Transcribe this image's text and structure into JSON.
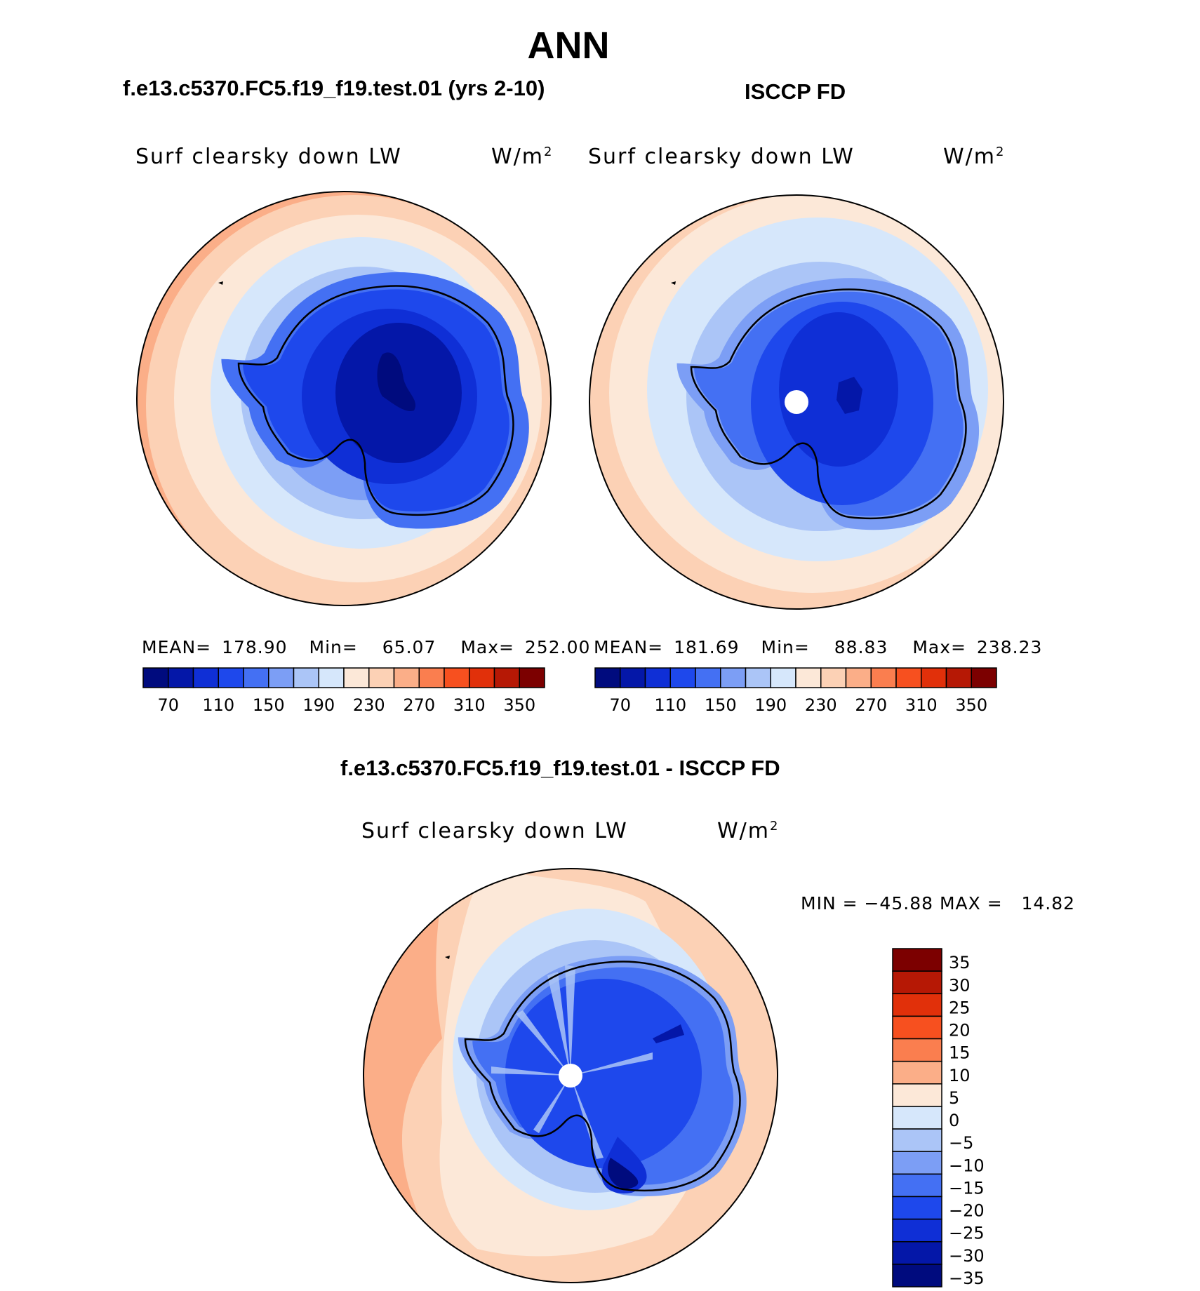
{
  "title": "ANN",
  "panels": [
    {
      "case_title": "f.e13.c5370.FC5.f19_f19.test.01 (yrs 2-10)",
      "variable": "Surf clearsky down LW",
      "units_base": "W/m",
      "units_exp": "2",
      "stats": {
        "mean_label": "MEAN=",
        "mean": "178.90",
        "min_label": "Min=",
        "min": "65.07",
        "max_label": "Max=",
        "max": "252.00"
      },
      "has_pole_hole": false
    },
    {
      "case_title": "ISCCP FD",
      "variable": "Surf clearsky down LW",
      "units_base": "W/m",
      "units_exp": "2",
      "stats": {
        "mean_label": "MEAN=",
        "mean": "181.69",
        "min_label": "Min=",
        "min": "88.83",
        "max_label": "Max=",
        "max": "238.23"
      },
      "has_pole_hole": true
    },
    {
      "case_title": "f.e13.c5370.FC5.f19_f19.test.01 - ISCCP FD",
      "variable": "Surf clearsky down LW",
      "units_base": "W/m",
      "units_exp": "2",
      "minmax_text": "MIN = −45.88 MAX =   14.82",
      "has_pole_hole": true
    }
  ],
  "abs_colorbar": {
    "colors": [
      "#000b7e",
      "#0417a8",
      "#0f2fd6",
      "#1e48ec",
      "#4470f3",
      "#7c9ef5",
      "#abc5f7",
      "#d6e7fb",
      "#fce8d8",
      "#fcd1b5",
      "#fbae88",
      "#fa7e4f",
      "#f7501f",
      "#e1300a",
      "#b61805",
      "#7c0000"
    ],
    "tick_labels": [
      "70",
      "110",
      "150",
      "190",
      "230",
      "270",
      "310",
      "350"
    ]
  },
  "diff_colorbar": {
    "colors": [
      "#7c0000",
      "#b61805",
      "#e1300a",
      "#f7501f",
      "#fa7e4f",
      "#fbae88",
      "#fce8d8",
      "#d6e7fb",
      "#abc5f7",
      "#7c9ef5",
      "#4470f3",
      "#1e48ec",
      "#0f2fd6",
      "#0417a8",
      "#000b7e"
    ],
    "tick_labels": [
      "35",
      "30",
      "25",
      "20",
      "15",
      "10",
      "5",
      "0",
      "−5",
      "−10",
      "−15",
      "−20",
      "−25",
      "−30",
      "−35"
    ]
  },
  "palette": {
    "orange_dark": "#fbae88",
    "orange_mid": "#fcd1b5",
    "cream": "#fce8d8",
    "pale_blue": "#d6e7fb",
    "light_blue": "#abc5f7",
    "mid_blue": "#7c9ef5",
    "blue": "#4470f3",
    "bright_blue": "#1e48ec",
    "royal_blue": "#0f2fd6",
    "deep_blue": "#0417a8",
    "navy": "#000b7e"
  }
}
